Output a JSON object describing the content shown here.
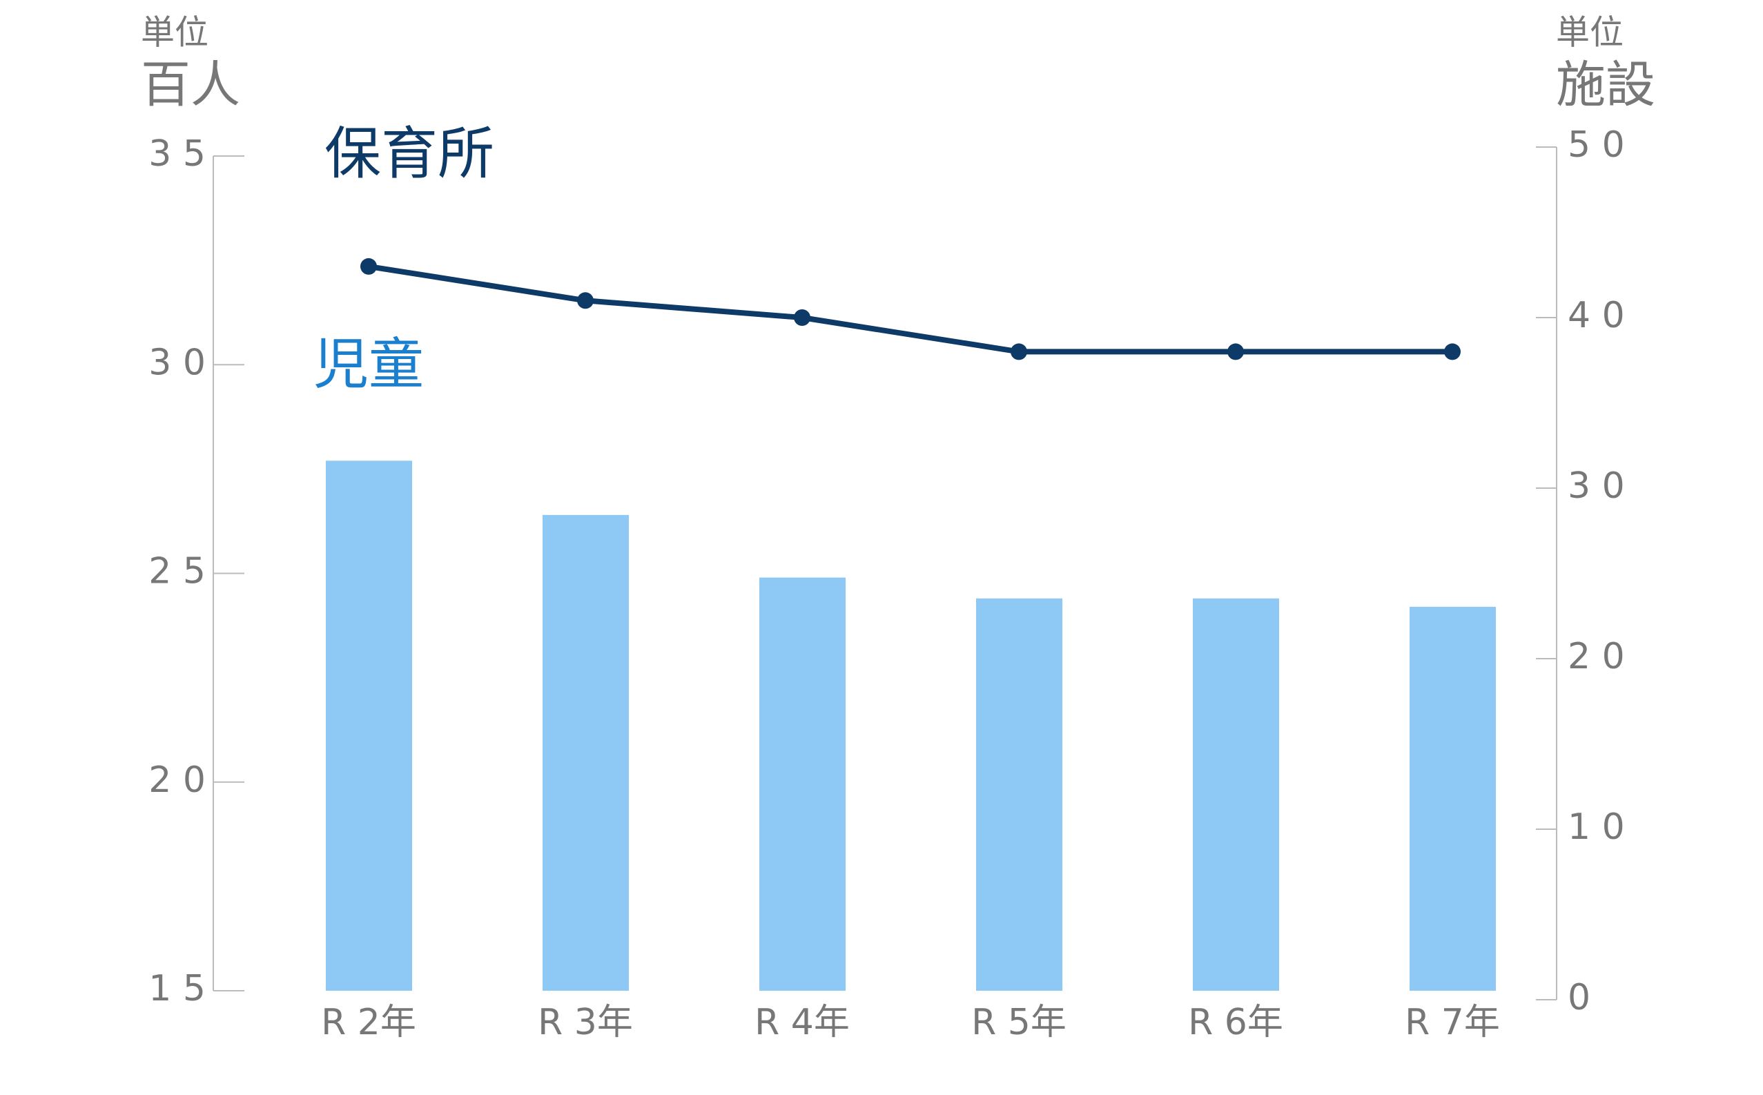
{
  "chart_data": {
    "type": "bar-line",
    "categories": [
      "R 2年",
      "R 3年",
      "R 4年",
      "R 5年",
      "R 6年",
      "R 7年"
    ],
    "y_unit_label": "単位",
    "y_unit": "百人",
    "y2_unit_label": "単位",
    "y2_unit": "施設",
    "ylim": [
      15,
      35
    ],
    "yticks": [
      {
        "value": 15,
        "label": "1 5"
      },
      {
        "value": 20,
        "label": "2 0"
      },
      {
        "value": 25,
        "label": "2 5"
      },
      {
        "value": 30,
        "label": "3 0"
      },
      {
        "value": 35,
        "label": "3 5"
      }
    ],
    "y2lim": [
      0,
      50
    ],
    "y2ticks": [
      0,
      {
        "value": 10,
        "label": "1 0"
      },
      {
        "value": 20,
        "label": "2 0"
      },
      {
        "value": 30,
        "label": "3 0"
      },
      {
        "value": 40,
        "label": "4 0"
      },
      {
        "value": 50,
        "label": "5 0"
      }
    ],
    "series": [
      {
        "name": "児童",
        "type": "bar",
        "color": "#8ec8f4",
        "label_color": "#1a7fcf",
        "values": [
          27.7,
          26.4,
          24.9,
          24.4,
          24.4,
          24.2
        ]
      },
      {
        "name": "保育所",
        "type": "line",
        "axis": "y2",
        "color": "#0d3a66",
        "label_color": "#0d3a66",
        "values": [
          43,
          41,
          40,
          38,
          38,
          38
        ]
      }
    ]
  }
}
